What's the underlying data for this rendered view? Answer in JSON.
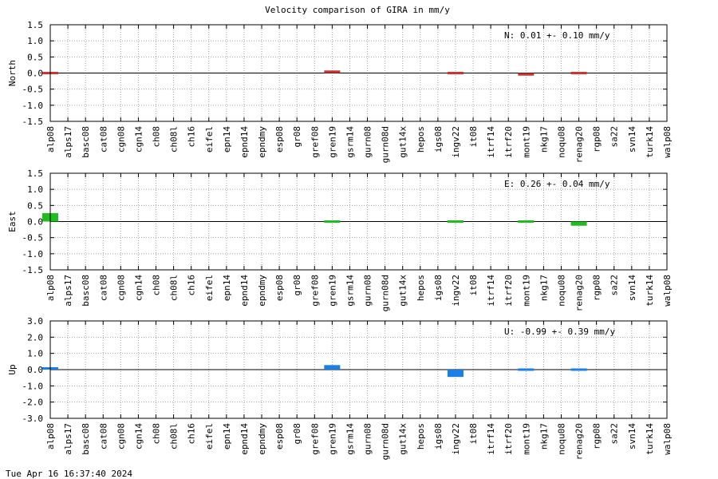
{
  "chart_data": {
    "type": "bar",
    "title": "Velocity comparison of GIRA in mm/y",
    "categories": [
      "alp08",
      "alps17",
      "basc08",
      "cat08",
      "cgn08",
      "cgn14",
      "ch08",
      "ch08l",
      "ch16",
      "eifel",
      "epn14",
      "epnd14",
      "epndmy",
      "esp08",
      "gr08",
      "gref08",
      "gren19",
      "gsrm14",
      "gurn08",
      "gurn08d",
      "gut14x",
      "hepos",
      "igs08",
      "ingv22",
      "it08",
      "itrf14",
      "itrf20",
      "mont19",
      "nkg17",
      "noqu08",
      "renag20",
      "rgp08",
      "sa22",
      "svn14",
      "turk14",
      "walp08"
    ],
    "panels": [
      {
        "ylabel": "North",
        "ylim": [
          -1.5,
          1.5
        ],
        "yticks": [
          "1.5",
          "1.0",
          "0.5",
          "0.0",
          "-0.5",
          "-1.0",
          "-1.5"
        ],
        "color": "#cc3333",
        "summary": "N:   0.01 +-  0.10 mm/y",
        "values": [
          0.02,
          null,
          null,
          null,
          null,
          null,
          null,
          null,
          null,
          null,
          null,
          null,
          null,
          null,
          null,
          null,
          0.08,
          null,
          null,
          null,
          null,
          null,
          null,
          -0.04,
          null,
          null,
          null,
          -0.08,
          null,
          null,
          -0.02,
          null,
          null,
          null,
          null,
          null
        ]
      },
      {
        "ylabel": "East",
        "ylim": [
          -1.5,
          1.5
        ],
        "yticks": [
          "1.5",
          "1.0",
          "0.5",
          "0.0",
          "-0.5",
          "-1.0",
          "-1.5"
        ],
        "color": "#22bb22",
        "summary": "E:   0.26 +-  0.04 mm/y",
        "values": [
          0.26,
          null,
          null,
          null,
          null,
          null,
          null,
          null,
          null,
          null,
          null,
          null,
          null,
          null,
          null,
          null,
          -0.02,
          null,
          null,
          null,
          null,
          null,
          null,
          0.02,
          null,
          null,
          null,
          -0.04,
          null,
          null,
          -0.13,
          null,
          null,
          null,
          null,
          null
        ]
      },
      {
        "ylabel": "Up",
        "ylim": [
          -3.0,
          3.0
        ],
        "yticks": [
          "3.0",
          "2.0",
          "1.0",
          "0.0",
          "-1.0",
          "-2.0",
          "-3.0"
        ],
        "color": "#1a7fe6",
        "summary": "U:  -0.99 +-  0.39 mm/y",
        "values": [
          0.15,
          null,
          null,
          null,
          null,
          null,
          null,
          null,
          null,
          null,
          null,
          null,
          null,
          null,
          null,
          null,
          0.28,
          null,
          null,
          null,
          null,
          null,
          null,
          -0.45,
          null,
          null,
          null,
          0.12,
          null,
          null,
          -0.05,
          null,
          null,
          null,
          null,
          null
        ]
      }
    ]
  },
  "footer": "Tue Apr 16 16:37:40 2024"
}
